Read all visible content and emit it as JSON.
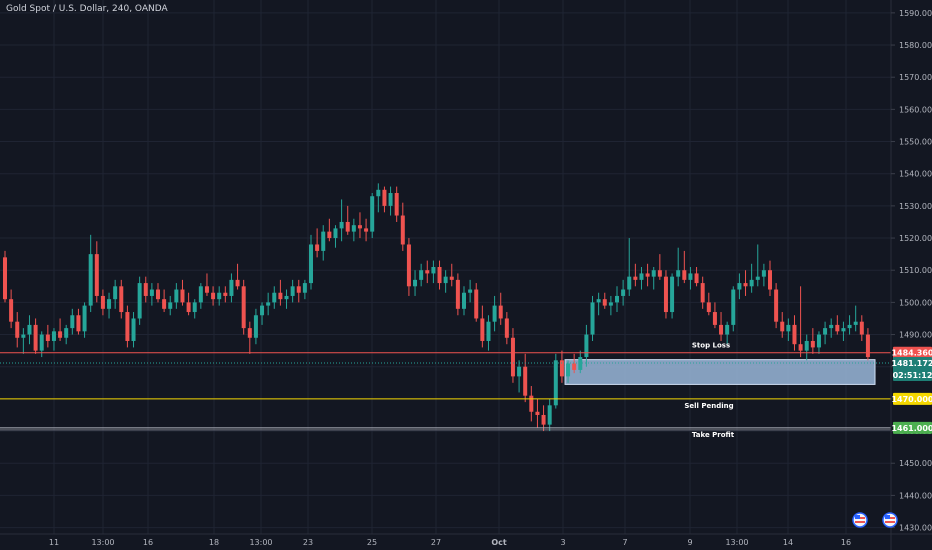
{
  "header": {
    "symbol_title": "Gold Spot / U.S. Dollar, 240, OANDA"
  },
  "colors": {
    "background": "#131722",
    "grid": "#1f2433",
    "up": "#26a69a",
    "down": "#ef5350",
    "stop_loss_line": "#ef5350",
    "sell_pending_line": "#f5d800",
    "take_profit_line": "#b2b5be",
    "zone_fill": "#9ab7d9",
    "text": "#d1d4dc"
  },
  "chart_data": {
    "type": "candlestick",
    "y_axis": {
      "position": "right",
      "range": [
        1428,
        1594
      ],
      "ticks": [
        1430,
        1440,
        1450,
        1460,
        1470,
        1480,
        1490,
        1500,
        1510,
        1520,
        1530,
        1540,
        1550,
        1560,
        1570,
        1580,
        1590
      ],
      "tick_labels": [
        "1430.000",
        "1440.000",
        "1450.000",
        "1460.000",
        "1470.000",
        "1480.000",
        "1490.000",
        "1500.000",
        "1510.000",
        "1520.000",
        "1530.000",
        "1540.000",
        "1550.000",
        "1560.000",
        "1570.000",
        "1580.000",
        "1590.000"
      ]
    },
    "x_axis": {
      "labels": [
        "11",
        "13:00",
        "16",
        "18",
        "13:00",
        "23",
        "25",
        "27",
        "Oct",
        "3",
        "7",
        "9",
        "13:00",
        "14",
        "16"
      ]
    },
    "grid": true,
    "candles": [
      [
        1514,
        1516,
        1500,
        1501
      ],
      [
        1501,
        1504,
        1492,
        1494
      ],
      [
        1494,
        1497,
        1486,
        1489
      ],
      [
        1489,
        1492,
        1484,
        1490
      ],
      [
        1490,
        1496,
        1487,
        1493
      ],
      [
        1493,
        1495,
        1484,
        1485
      ],
      [
        1485,
        1491,
        1483,
        1490
      ],
      [
        1490,
        1493,
        1486,
        1488
      ],
      [
        1488,
        1492,
        1485,
        1491
      ],
      [
        1491,
        1495,
        1488,
        1489
      ],
      [
        1489,
        1493,
        1487,
        1492
      ],
      [
        1492,
        1498,
        1490,
        1496
      ],
      [
        1496,
        1498,
        1490,
        1491
      ],
      [
        1491,
        1500,
        1489,
        1499
      ],
      [
        1499,
        1521,
        1497,
        1515
      ],
      [
        1515,
        1519,
        1500,
        1502
      ],
      [
        1502,
        1504,
        1496,
        1498
      ],
      [
        1498,
        1503,
        1495,
        1501
      ],
      [
        1501,
        1507,
        1498,
        1505
      ],
      [
        1505,
        1507,
        1495,
        1497
      ],
      [
        1497,
        1499,
        1486,
        1488
      ],
      [
        1488,
        1497,
        1486,
        1495
      ],
      [
        1495,
        1508,
        1493,
        1506
      ],
      [
        1506,
        1508,
        1500,
        1502
      ],
      [
        1502,
        1506,
        1499,
        1504
      ],
      [
        1504,
        1506,
        1500,
        1501
      ],
      [
        1501,
        1504,
        1497,
        1498
      ],
      [
        1498,
        1502,
        1496,
        1500
      ],
      [
        1500,
        1506,
        1498,
        1504
      ],
      [
        1504,
        1507,
        1499,
        1500
      ],
      [
        1500,
        1503,
        1496,
        1497
      ],
      [
        1497,
        1501,
        1495,
        1500
      ],
      [
        1500,
        1506,
        1498,
        1505
      ],
      [
        1505,
        1509,
        1502,
        1503
      ],
      [
        1503,
        1505,
        1499,
        1501
      ],
      [
        1501,
        1505,
        1499,
        1503
      ],
      [
        1503,
        1505,
        1500,
        1502
      ],
      [
        1502,
        1509,
        1500,
        1507
      ],
      [
        1507,
        1512,
        1504,
        1505
      ],
      [
        1505,
        1507,
        1490,
        1492
      ],
      [
        1492,
        1494,
        1484,
        1489
      ],
      [
        1489,
        1498,
        1487,
        1496
      ],
      [
        1496,
        1500,
        1493,
        1499
      ],
      [
        1499,
        1503,
        1496,
        1500
      ],
      [
        1500,
        1505,
        1498,
        1503
      ],
      [
        1503,
        1507,
        1499,
        1501
      ],
      [
        1501,
        1504,
        1498,
        1502
      ],
      [
        1502,
        1507,
        1500,
        1505
      ],
      [
        1505,
        1507,
        1500,
        1503
      ],
      [
        1503,
        1507,
        1501,
        1506
      ],
      [
        1506,
        1521,
        1504,
        1518
      ],
      [
        1518,
        1523,
        1514,
        1516
      ],
      [
        1516,
        1524,
        1513,
        1522
      ],
      [
        1522,
        1526,
        1519,
        1520
      ],
      [
        1520,
        1524,
        1517,
        1523
      ],
      [
        1523,
        1532,
        1519,
        1525
      ],
      [
        1525,
        1530,
        1521,
        1522
      ],
      [
        1522,
        1526,
        1519,
        1524
      ],
      [
        1524,
        1528,
        1520,
        1523
      ],
      [
        1523,
        1526,
        1519,
        1522
      ],
      [
        1522,
        1534,
        1520,
        1533
      ],
      [
        1533,
        1537,
        1528,
        1535
      ],
      [
        1535,
        1536,
        1528,
        1530
      ],
      [
        1530,
        1536,
        1527,
        1534
      ],
      [
        1534,
        1536,
        1525,
        1527
      ],
      [
        1527,
        1531,
        1516,
        1518
      ],
      [
        1518,
        1520,
        1502,
        1505
      ],
      [
        1505,
        1510,
        1502,
        1507
      ],
      [
        1507,
        1512,
        1505,
        1510
      ],
      [
        1510,
        1513,
        1506,
        1509
      ],
      [
        1509,
        1513,
        1506,
        1511
      ],
      [
        1511,
        1513,
        1504,
        1506
      ],
      [
        1506,
        1510,
        1503,
        1508
      ],
      [
        1508,
        1512,
        1505,
        1507
      ],
      [
        1507,
        1509,
        1496,
        1498
      ],
      [
        1498,
        1505,
        1496,
        1503
      ],
      [
        1503,
        1507,
        1500,
        1504
      ],
      [
        1504,
        1506,
        1494,
        1495
      ],
      [
        1495,
        1499,
        1486,
        1488
      ],
      [
        1488,
        1496,
        1485,
        1494
      ],
      [
        1494,
        1502,
        1491,
        1499
      ],
      [
        1499,
        1503,
        1493,
        1495
      ],
      [
        1495,
        1497,
        1487,
        1489
      ],
      [
        1489,
        1492,
        1475,
        1477
      ],
      [
        1477,
        1482,
        1472,
        1480
      ],
      [
        1480,
        1484,
        1469,
        1471
      ],
      [
        1471,
        1474,
        1463,
        1466
      ],
      [
        1466,
        1470,
        1461,
        1465
      ],
      [
        1465,
        1468,
        1460,
        1462
      ],
      [
        1462,
        1470,
        1460,
        1468
      ],
      [
        1468,
        1484,
        1467,
        1482
      ],
      [
        1482,
        1485,
        1475,
        1477
      ],
      [
        1477,
        1482,
        1475,
        1481
      ],
      [
        1481,
        1484,
        1478,
        1479
      ],
      [
        1479,
        1485,
        1478,
        1483
      ],
      [
        1483,
        1493,
        1480,
        1490
      ],
      [
        1490,
        1502,
        1488,
        1500
      ],
      [
        1500,
        1503,
        1496,
        1501
      ],
      [
        1501,
        1503,
        1498,
        1499
      ],
      [
        1499,
        1502,
        1496,
        1500
      ],
      [
        1500,
        1505,
        1497,
        1502
      ],
      [
        1502,
        1507,
        1499,
        1504
      ],
      [
        1504,
        1520,
        1502,
        1508
      ],
      [
        1508,
        1512,
        1505,
        1507
      ],
      [
        1507,
        1511,
        1504,
        1509
      ],
      [
        1509,
        1512,
        1505,
        1508
      ],
      [
        1508,
        1511,
        1504,
        1510
      ],
      [
        1510,
        1515,
        1507,
        1508
      ],
      [
        1508,
        1510,
        1495,
        1497
      ],
      [
        1497,
        1509,
        1495,
        1508
      ],
      [
        1508,
        1517,
        1505,
        1510
      ],
      [
        1510,
        1516,
        1506,
        1507
      ],
      [
        1507,
        1511,
        1504,
        1509
      ],
      [
        1509,
        1511,
        1505,
        1506
      ],
      [
        1506,
        1508,
        1498,
        1500
      ],
      [
        1500,
        1503,
        1496,
        1497
      ],
      [
        1497,
        1500,
        1492,
        1493
      ],
      [
        1493,
        1497,
        1488,
        1490
      ],
      [
        1490,
        1494,
        1487,
        1493
      ],
      [
        1493,
        1505,
        1491,
        1504
      ],
      [
        1504,
        1509,
        1501,
        1506
      ],
      [
        1506,
        1510,
        1502,
        1505
      ],
      [
        1505,
        1512,
        1503,
        1507
      ],
      [
        1507,
        1518,
        1505,
        1508
      ],
      [
        1508,
        1512,
        1505,
        1510
      ],
      [
        1510,
        1513,
        1502,
        1504
      ],
      [
        1504,
        1506,
        1492,
        1494
      ],
      [
        1494,
        1497,
        1489,
        1491
      ],
      [
        1491,
        1495,
        1488,
        1493
      ],
      [
        1493,
        1496,
        1485,
        1487
      ],
      [
        1487,
        1505,
        1483,
        1485
      ],
      [
        1485,
        1490,
        1482,
        1488
      ],
      [
        1488,
        1492,
        1484,
        1486
      ],
      [
        1486,
        1491,
        1484,
        1490
      ],
      [
        1490,
        1494,
        1487,
        1492
      ],
      [
        1492,
        1495,
        1489,
        1493
      ],
      [
        1493,
        1496,
        1490,
        1491
      ],
      [
        1491,
        1494,
        1488,
        1492
      ],
      [
        1492,
        1496,
        1490,
        1493
      ],
      [
        1493,
        1499,
        1491,
        1494
      ],
      [
        1494,
        1496,
        1488,
        1490
      ],
      [
        1490,
        1492,
        1482,
        1483
      ]
    ],
    "current_price": "1481.172",
    "countdown": "02:51:12",
    "levels": [
      {
        "name": "Stop Loss",
        "price": 1484.36,
        "label": "1484.360",
        "annotation": "Stop Loss"
      },
      {
        "name": "Sell Pending",
        "price": 1470.0,
        "label": "1470.000",
        "annotation": "Sell Pending"
      },
      {
        "name": "Take Profit",
        "price": 1461.0,
        "label": "1461.000",
        "annotation": "Take Profit"
      }
    ],
    "zone": {
      "from_candle": 92,
      "to_candle": 135,
      "top": 1482.2,
      "bottom": 1474.5
    }
  }
}
